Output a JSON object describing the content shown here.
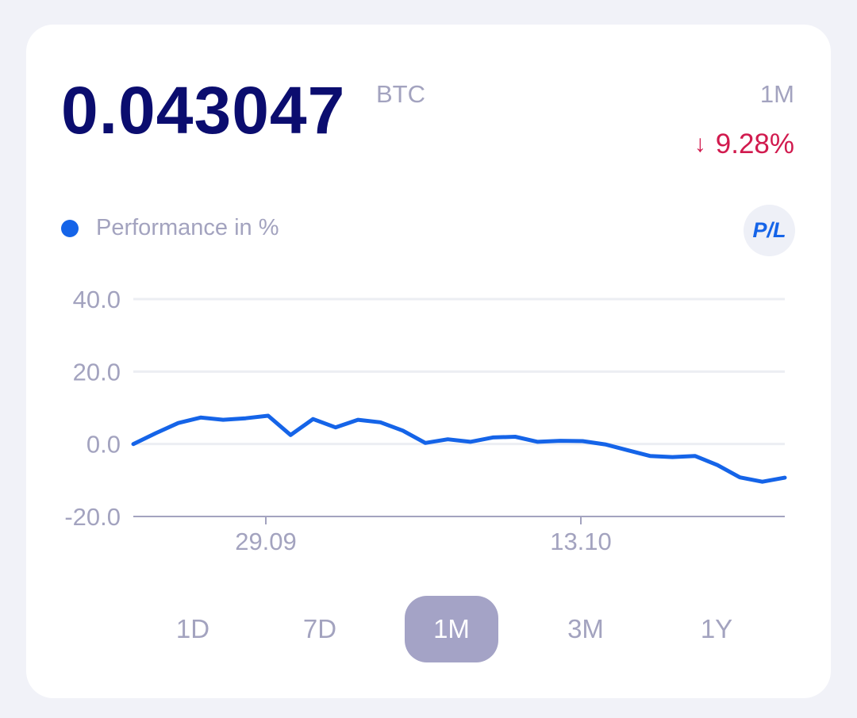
{
  "header": {
    "balance": "0.043047",
    "unit": "BTC",
    "period": "1M",
    "change_arrow": "↓",
    "change_value": "9.28%"
  },
  "legend": {
    "label": "Performance in %",
    "pl_button": "P/L"
  },
  "chart_data": {
    "type": "line",
    "xlabel": "",
    "ylabel": "",
    "ylim": [
      -20,
      40
    ],
    "yticks": [
      "40.0",
      "20.0",
      "0.0",
      "-20.0"
    ],
    "xtick_labels": [
      "29.09",
      "13.10"
    ],
    "grid": true,
    "series": [
      {
        "values": [
          0.0,
          3.0,
          5.8,
          7.3,
          6.7,
          7.1,
          7.8,
          2.5,
          6.9,
          4.6,
          6.7,
          6.0,
          3.7,
          0.3,
          1.3,
          0.6,
          1.8,
          2.0,
          0.6,
          0.9,
          0.8,
          -0.1,
          -1.7,
          -3.3,
          -3.6,
          -3.3,
          -5.8,
          -9.2,
          -10.4,
          -9.3
        ],
        "color": "#1564e8"
      }
    ]
  },
  "tabs": [
    {
      "label": "1D",
      "active": false
    },
    {
      "label": "7D",
      "active": false
    },
    {
      "label": "1M",
      "active": true
    },
    {
      "label": "3M",
      "active": false
    },
    {
      "label": "1Y",
      "active": false
    }
  ]
}
